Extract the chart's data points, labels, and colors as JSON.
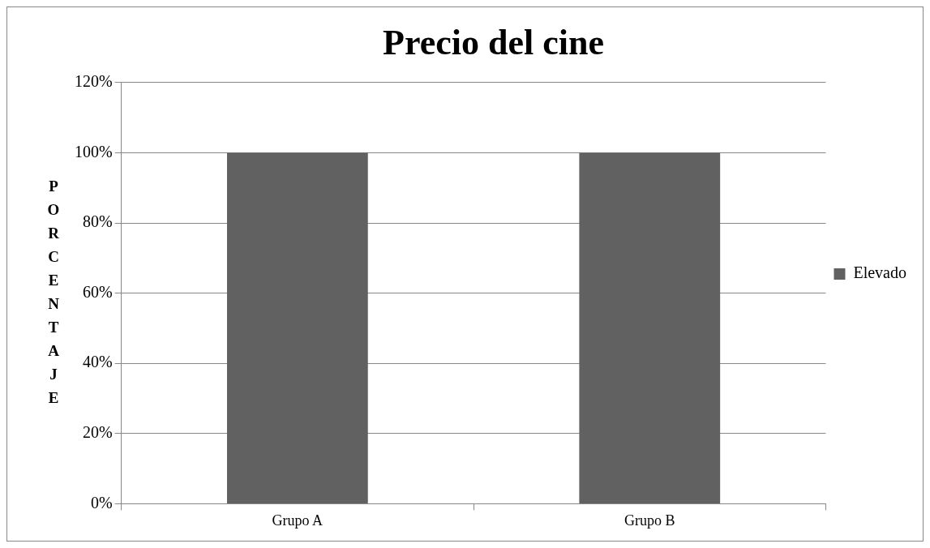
{
  "chart_data": {
    "type": "bar",
    "title": "Precio del cine",
    "ylabel": "PORCENTAJE",
    "categories": [
      "Grupo A",
      "Grupo B"
    ],
    "series": [
      {
        "name": "Elevado",
        "color": "#616161",
        "values": [
          100,
          100
        ]
      }
    ],
    "ylim": [
      0,
      120
    ],
    "yticks": [
      {
        "value": 0,
        "label": "0%"
      },
      {
        "value": 20,
        "label": "20%"
      },
      {
        "value": 40,
        "label": "40%"
      },
      {
        "value": 60,
        "label": "60%"
      },
      {
        "value": 80,
        "label": "80%"
      },
      {
        "value": 100,
        "label": "100%"
      },
      {
        "value": 120,
        "label": "120%"
      }
    ],
    "grid": "y",
    "legend": "right"
  }
}
